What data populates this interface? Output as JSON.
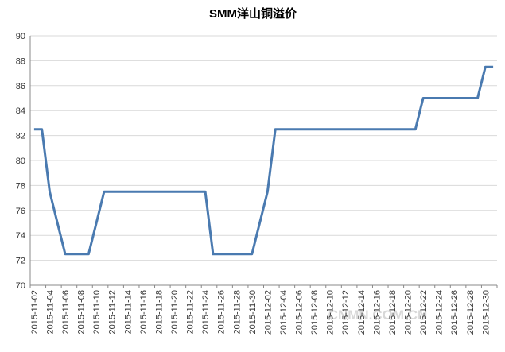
{
  "chart_data": {
    "type": "line",
    "title": "SMM洋山铜溢价",
    "categories": [
      "2015-11-02",
      null,
      "2015-11-04",
      null,
      "2015-11-06",
      null,
      "2015-11-08",
      null,
      "2015-11-10",
      null,
      "2015-11-12",
      null,
      "2015-11-14",
      null,
      "2015-11-16",
      null,
      "2015-11-18",
      null,
      "2015-11-20",
      null,
      "2015-11-22",
      null,
      "2015-11-24",
      null,
      "2015-11-26",
      null,
      "2015-11-28",
      null,
      "2015-11-30",
      null,
      "2015-12-02",
      null,
      "2015-12-04",
      null,
      "2015-12-06",
      null,
      "2015-12-08",
      null,
      "2015-12-10",
      null,
      "2015-12-12",
      null,
      "2015-12-14",
      null,
      "2015-12-16",
      null,
      "2015-12-18",
      null,
      "2015-12-20",
      null,
      "2015-12-22",
      null,
      "2015-12-24",
      null,
      "2015-12-26",
      null,
      "2015-12-28",
      null,
      "2015-12-30",
      null
    ],
    "values": [
      82.5,
      82.5,
      77.5,
      75,
      72.5,
      72.5,
      72.5,
      72.5,
      75,
      77.5,
      77.5,
      77.5,
      77.5,
      77.5,
      77.5,
      77.5,
      77.5,
      77.5,
      77.5,
      77.5,
      77.5,
      77.5,
      77.5,
      72.5,
      72.5,
      72.5,
      72.5,
      72.5,
      72.5,
      75,
      77.5,
      82.5,
      82.5,
      82.5,
      82.5,
      82.5,
      82.5,
      82.5,
      82.5,
      82.5,
      82.5,
      82.5,
      82.5,
      82.5,
      82.5,
      82.5,
      82.5,
      82.5,
      82.5,
      82.5,
      85,
      85,
      85,
      85,
      85,
      85,
      85,
      85,
      87.5,
      87.5
    ],
    "color": "#4a7ab0",
    "ylim": [
      70,
      90
    ],
    "yticks": [
      70,
      72,
      74,
      76,
      78,
      80,
      82,
      84,
      86,
      88,
      90
    ],
    "grid": true,
    "watermark": "CNMN.COM.CN"
  }
}
